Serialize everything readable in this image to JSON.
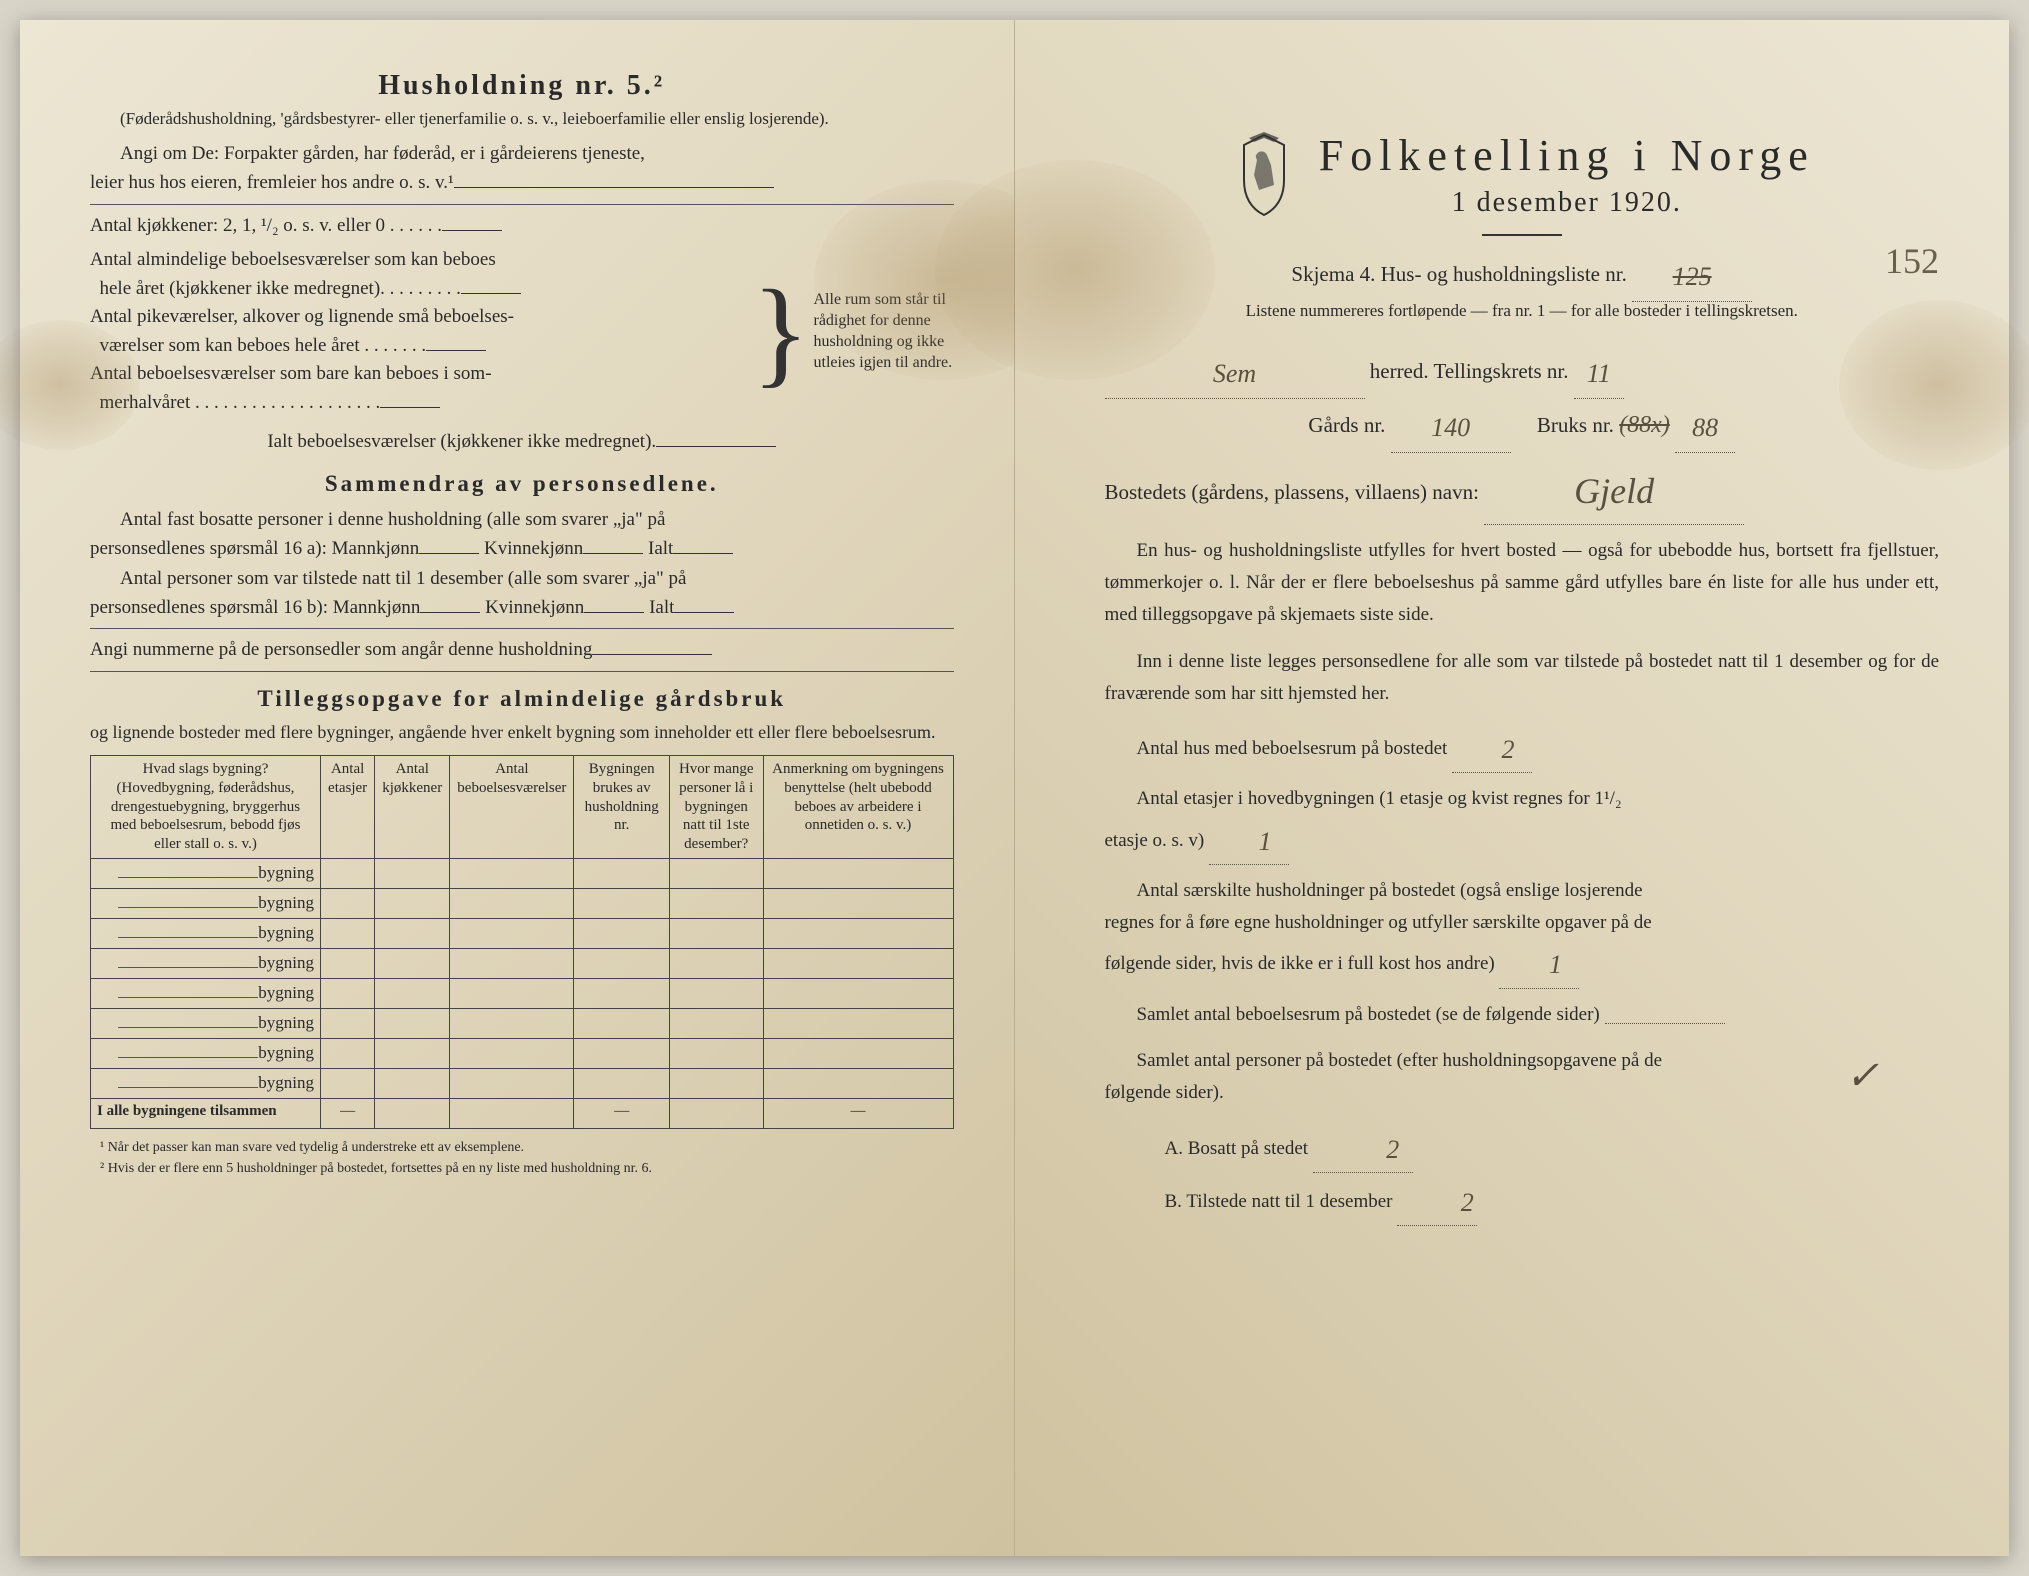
{
  "left": {
    "heading": "Husholdning nr. 5.²",
    "note1": "(Føderådshusholdning, 'gårdsbestyrer- eller tjenerfamilie o. s. v., leieboerfamilie eller enslig losjerende).",
    "note2_a": "Angi om De: Forpakter gården, har føderåd, er i gårdeierens tjeneste,",
    "note2_b": "leier hus hos eieren, fremleier hos andre o. s. v.¹",
    "kjokken_line": "Antal kjøkkener: 2, 1, ¹/₂ o. s. v. eller 0 . . . . . .",
    "brace_lines": {
      "a1": "Antal almindelige beboelsesværelser som kan beboes",
      "a2": "hele året (kjøkkener ikke medregnet). . . . . . . . .",
      "b1": "Antal pikeværelser, alkover og lignende små beboelses-",
      "b2": "værelser som kan beboes hele året . . . . . . .",
      "c1": "Antal beboelsesværelser som bare kan beboes i som-",
      "c2": "merhalvåret . . . . . . . . . . . . . . . . . . . ."
    },
    "brace_right": "Alle rum som står til rådighet for denne husholdning og ikke utleies igjen til andre.",
    "ialt_line": "Ialt beboelsesværelser (kjøkkener ikke medregnet).",
    "sammendrag_title": "Sammendrag av personsedlene.",
    "s_line1": "Antal fast bosatte personer i denne husholdning (alle som svarer „ja\" på",
    "s_line2": "personsedlenes spørsmål 16 a): Mannkjønn",
    "s_kv": "Kvinnekjønn",
    "s_ialt": "Ialt",
    "s_line3": "Antal personer som var tilstede natt til 1 desember (alle som svarer „ja\" på",
    "s_line4": "personsedlenes spørsmål 16 b): Mannkjønn",
    "angi_line": "Angi nummerne på de personsedler som angår denne husholdning",
    "tillegg_title": "Tilleggsopgave for almindelige gårdsbruk",
    "tillegg_sub": "og lignende bosteder med flere bygninger, angående hver enkelt bygning som inneholder ett eller flere beboelsesrum.",
    "table": {
      "headers": [
        "Hvad slags bygning?\n(Hovedbygning, føderådshus, drengestuebygning, bryggerhus med beboelsesrum, bebodd fjøs eller stall o. s. v.)",
        "Antal etasjer",
        "Antal kjøkkener",
        "Antal beboelsesværelser",
        "Bygningen brukes av husholdning nr.",
        "Hvor mange personer lå i bygningen natt til 1ste desember?",
        "Anmerkning om bygningens benyttelse (helt ubebodd beboes av arbeidere i onnetiden o. s. v.)"
      ],
      "row_label": "bygning",
      "row_count": 8,
      "total_label": "I alle bygningene tilsammen"
    },
    "footnote1": "¹  Når det passer kan man svare ved tydelig å understreke ett av eksemplene.",
    "footnote2": "²  Hvis der er flere enn 5 husholdninger på bostedet, fortsettes på en ny liste med husholdning nr. 6."
  },
  "right": {
    "main_title": "Folketelling i Norge",
    "sub_title": "1 desember 1920.",
    "handwritten_152": "152",
    "skjema_line_a": "Skjema 4.   Hus- og husholdningsliste nr.",
    "skjema_strike": "125",
    "listene_line": "Listene nummereres fortløpende — fra nr. 1 — for alle bosteder i tellingskretsen.",
    "herred_value": "Sem",
    "herred_label": "herred.   Tellingskrets nr.",
    "tellingskrets_value": "11",
    "gards_label": "Gårds nr.",
    "gards_value": "140",
    "bruks_label": "Bruks nr.",
    "bruks_strike": "(88x)",
    "bruks_value": "88",
    "bosted_label": "Bostedets (gårdens, plassens, villaens) navn:",
    "bosted_value": "Gjeld",
    "p1": "En hus- og husholdningsliste utfylles for hvert bosted — også for ubebodde hus, bortsett fra fjellstuer, tømmerkojer o. l.  Når der er flere beboelseshus på samme gård utfylles bare én liste for alle hus under ett, med tilleggsopgave på skjemaets siste side.",
    "p2": "Inn i denne liste legges personsedlene for alle som var tilstede på bostedet natt til 1 desember og for de fraværende som har sitt hjemsted her.",
    "q1_a": "Antal hus med beboelsesrum på bostedet",
    "q1_val": "2",
    "q2_a": "Antal etasjer i hovedbygningen (1 etasje og kvist regnes for 1¹/₂",
    "q2_b": "etasje o. s. v)",
    "q2_val": "1",
    "q3_a": "Antal særskilte husholdninger på bostedet (også enslige losjerende",
    "q3_b": "regnes for å føre egne husholdninger og utfyller særskilte opgaver på de",
    "q3_c": "følgende sider, hvis de ikke er i full kost hos andre)",
    "q3_val": "1",
    "q4": "Samlet antal beboelsesrum på bostedet (se de følgende sider)",
    "q5_a": "Samlet antal personer på bostedet (efter husholdningsopgavene på de",
    "q5_b": "følgende sider).",
    "qA_label": "A.  Bosatt på stedet",
    "qA_val": "2",
    "qB_label": "B.  Tilstede natt til 1 desember",
    "qB_val": "2",
    "checkmark": "✓"
  },
  "colors": {
    "ink": "#2a2a2a",
    "pencil": "#6a5f4a",
    "paper": "#e8e2d0"
  }
}
